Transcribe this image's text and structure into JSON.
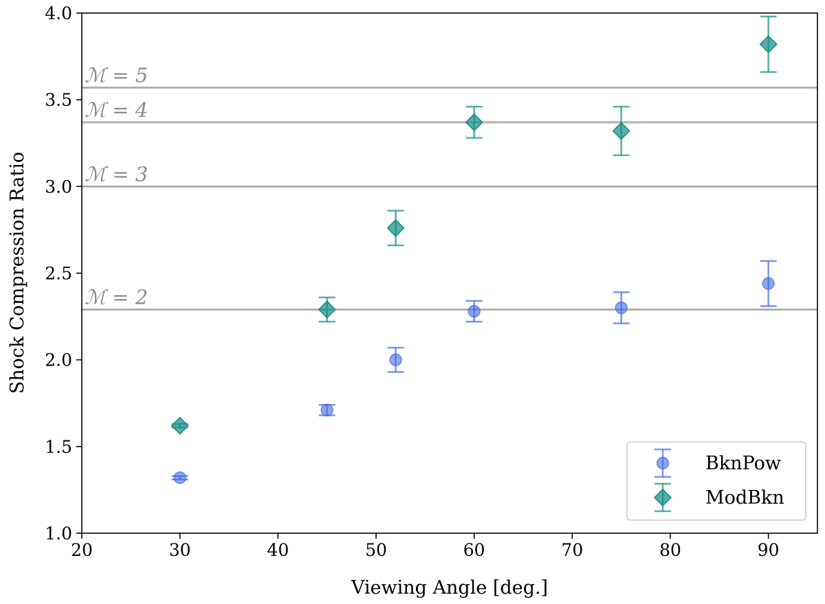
{
  "chart_data": {
    "type": "scatter",
    "title": "",
    "xlabel": "Viewing Angle [deg.]",
    "ylabel": "Shock Compression Ratio",
    "xlim": [
      20,
      95
    ],
    "ylim": [
      1.0,
      4.0
    ],
    "xticks": [
      20,
      30,
      40,
      50,
      60,
      70,
      80,
      90
    ],
    "xtick_labels": [
      "20",
      "30",
      "40",
      "50",
      "60",
      "70",
      "80",
      "90"
    ],
    "yticks": [
      1.0,
      1.5,
      2.0,
      2.5,
      3.0,
      3.5,
      4.0
    ],
    "ytick_labels": [
      "1.0",
      "1.5",
      "2.0",
      "2.5",
      "3.0",
      "3.5",
      "4.0"
    ],
    "grid": false,
    "legend_position": "bottom-right",
    "reference_lines": [
      {
        "label": "ℳ = 2",
        "y": 2.29
      },
      {
        "label": "ℳ = 3",
        "y": 3.0
      },
      {
        "label": "ℳ = 4",
        "y": 3.37
      },
      {
        "label": "ℳ = 5",
        "y": 3.57
      }
    ],
    "series": [
      {
        "name": "BknPow",
        "marker": "circle",
        "color": "#4169e1",
        "x": [
          30,
          45,
          52,
          60,
          75,
          90
        ],
        "y": [
          1.32,
          1.71,
          2.0,
          2.28,
          2.3,
          2.44
        ],
        "yerr": [
          0.01,
          0.03,
          0.07,
          0.06,
          0.09,
          0.13
        ]
      },
      {
        "name": "ModBkn",
        "marker": "diamond",
        "color": "#128b85",
        "x": [
          30,
          45,
          52,
          60,
          75,
          90
        ],
        "y": [
          1.62,
          2.29,
          2.76,
          3.37,
          3.32,
          3.82
        ],
        "yerr": [
          0.01,
          0.07,
          0.1,
          0.09,
          0.14,
          0.16
        ]
      }
    ]
  }
}
